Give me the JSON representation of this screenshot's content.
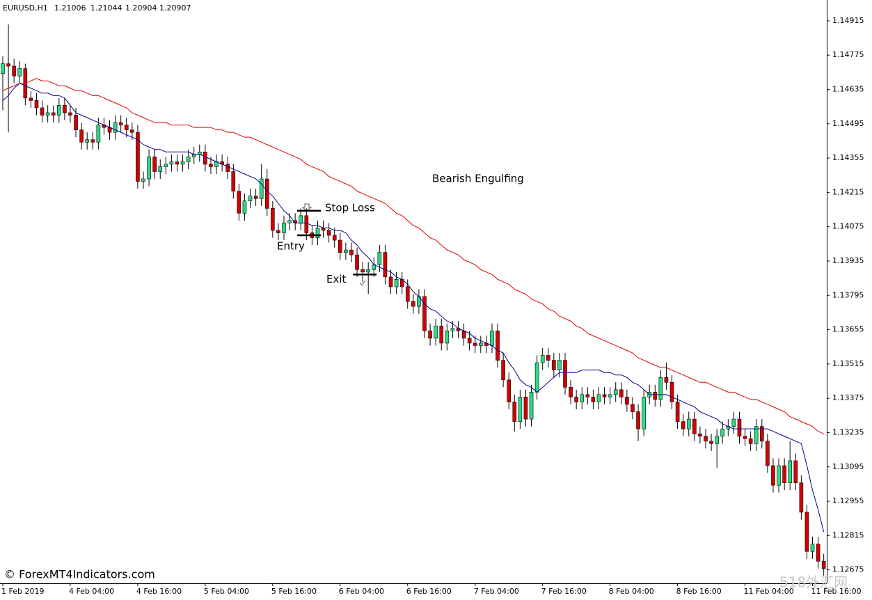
{
  "chart_data": {
    "type": "candlestick",
    "header": {
      "symbol": "EURUSD,H1",
      "open": 1.21006,
      "high": 1.21044,
      "low": 1.20904,
      "close": 1.20907
    },
    "categories": [
      "1 Feb 2019",
      null,
      null,
      null,
      null,
      null,
      null,
      null,
      null,
      null,
      null,
      null,
      "4 Feb 04:00",
      null,
      null,
      null,
      null,
      null,
      null,
      null,
      null,
      null,
      null,
      null,
      "4 Feb 16:00",
      null,
      null,
      null,
      null,
      null,
      null,
      null,
      null,
      null,
      null,
      null,
      "5 Feb 04:00",
      null,
      null,
      null,
      null,
      null,
      null,
      null,
      null,
      null,
      null,
      null,
      "5 Feb 16:00",
      null,
      null,
      null,
      null,
      null,
      null,
      null,
      null,
      null,
      null,
      null,
      "6 Feb 04:00",
      null,
      null,
      null,
      null,
      null,
      null,
      null,
      null,
      null,
      null,
      null,
      "6 Feb 16:00",
      null,
      null,
      null,
      null,
      null,
      null,
      null,
      null,
      null,
      null,
      null,
      "7 Feb 04:00",
      null,
      null,
      null,
      null,
      null,
      null,
      null,
      null,
      null,
      null,
      null,
      "7 Feb 16:00",
      null,
      null,
      null,
      null,
      null,
      null,
      null,
      null,
      null,
      null,
      null,
      "8 Feb 04:00",
      null,
      null,
      null,
      null,
      null,
      null,
      null,
      null,
      null,
      null,
      null,
      "8 Feb 16:00",
      null,
      null,
      null,
      null,
      null,
      null,
      null,
      null,
      null,
      null,
      null,
      "11 Feb 04:00",
      null,
      null,
      null,
      null,
      null,
      null,
      null,
      null,
      null,
      null,
      null,
      "11 Feb 16:00",
      null,
      null
    ],
    "open": [
      1.147,
      1.1474,
      1.1473,
      1.1469,
      1.1472,
      1.146,
      1.1459,
      1.1456,
      1.1453,
      1.1454,
      1.1453,
      1.1457,
      1.1454,
      1.1453,
      1.1447,
      1.1442,
      1.1443,
      1.1442,
      1.1449,
      1.1448,
      1.1446,
      1.145,
      1.1449,
      1.1447,
      1.1446,
      1.1426,
      1.1427,
      1.1436,
      1.143,
      1.1432,
      1.1433,
      1.1434,
      1.1433,
      1.1434,
      1.1436,
      1.1437,
      1.1438,
      1.1433,
      1.1432,
      1.1434,
      1.1433,
      1.143,
      1.1422,
      1.1413,
      1.1418,
      1.142,
      1.1419,
      1.1427,
      1.1415,
      1.1406,
      1.1405,
      1.1409,
      1.141,
      1.1409,
      1.1412,
      1.1405,
      1.1403,
      1.1407,
      1.1406,
      1.1404,
      1.1402,
      1.1397,
      1.1398,
      1.1396,
      1.139,
      1.1389,
      1.139,
      1.1392,
      1.1397,
      1.1387,
      1.1383,
      1.1386,
      1.1383,
      1.1377,
      1.1375,
      1.1379,
      1.1365,
      1.1362,
      1.1367,
      1.136,
      1.1365,
      1.1366,
      1.1365,
      1.1362,
      1.136,
      1.1359,
      1.136,
      1.1359,
      1.1365,
      1.1353,
      1.1345,
      1.1336,
      1.1328,
      1.1338,
      1.1329,
      1.134,
      1.1352,
      1.1355,
      1.1353,
      1.1349,
      1.1353,
      1.1342,
      1.1338,
      1.1336,
      1.1339,
      1.1338,
      1.1336,
      1.1339,
      1.1338,
      1.1339,
      1.1341,
      1.1338,
      1.1335,
      1.1332,
      1.1325,
      1.1338,
      1.134,
      1.1337,
      1.1346,
      1.1344,
      1.1336,
      1.1328,
      1.1325,
      1.1329,
      1.1323,
      1.1322,
      1.132,
      1.1319,
      1.1322,
      1.1325,
      1.1326,
      1.1329,
      1.1322,
      1.1321,
      1.1319,
      1.1326,
      1.132,
      1.131,
      1.1302,
      1.131,
      1.1303,
      1.1312,
      1.1303,
      1.1291,
      1.1275,
      1.1278,
      1.1271
    ],
    "high": [
      1.1477,
      1.149,
      1.1476,
      1.1475,
      1.1474,
      1.1463,
      1.1462,
      1.1459,
      1.1457,
      1.1457,
      1.146,
      1.146,
      1.1457,
      1.1456,
      1.145,
      1.1446,
      1.1446,
      1.1452,
      1.1452,
      1.1451,
      1.1453,
      1.1453,
      1.1452,
      1.145,
      1.1449,
      1.143,
      1.1439,
      1.1439,
      1.1435,
      1.1436,
      1.1437,
      1.1437,
      1.1437,
      1.1439,
      1.144,
      1.1441,
      1.1441,
      1.1436,
      1.1437,
      1.1437,
      1.1436,
      1.1433,
      1.1425,
      1.1421,
      1.1423,
      1.1423,
      1.1433,
      1.1431,
      1.1418,
      1.1409,
      1.1412,
      1.1413,
      1.1413,
      1.1415,
      1.1415,
      1.1408,
      1.141,
      1.141,
      1.1409,
      1.1407,
      1.1405,
      1.1401,
      1.1401,
      1.1399,
      1.1393,
      1.1393,
      1.1395,
      1.14,
      1.14,
      1.139,
      1.1389,
      1.1389,
      1.1386,
      1.138,
      1.1382,
      1.1382,
      1.1368,
      1.137,
      1.137,
      1.1368,
      1.1369,
      1.1369,
      1.1368,
      1.1365,
      1.1363,
      1.1363,
      1.1363,
      1.1368,
      1.1368,
      1.1356,
      1.1348,
      1.1339,
      1.1341,
      1.1341,
      1.1343,
      1.1355,
      1.1358,
      1.1358,
      1.1356,
      1.1356,
      1.1356,
      1.1345,
      1.1341,
      1.1342,
      1.1342,
      1.1341,
      1.1342,
      1.1342,
      1.1342,
      1.1344,
      1.1344,
      1.1341,
      1.1338,
      1.1335,
      1.1341,
      1.1343,
      1.1343,
      1.1349,
      1.1352,
      1.1347,
      1.1339,
      1.1331,
      1.1332,
      1.1332,
      1.1326,
      1.1325,
      1.1323,
      1.1325,
      1.1328,
      1.1329,
      1.1332,
      1.1332,
      1.1325,
      1.1324,
      1.1329,
      1.1329,
      1.1323,
      1.1313,
      1.1313,
      1.1313,
      1.132,
      1.1315,
      1.1306,
      1.1294,
      1.1281,
      1.1281,
      1.1274
    ],
    "low": [
      1.1455,
      1.1446,
      1.1466,
      1.1466,
      1.1457,
      1.1456,
      1.1453,
      1.145,
      1.145,
      1.145,
      1.145,
      1.1451,
      1.145,
      1.1444,
      1.1439,
      1.1439,
      1.1439,
      1.1439,
      1.1445,
      1.1443,
      1.1443,
      1.1446,
      1.1444,
      1.1443,
      1.1423,
      1.1423,
      1.1424,
      1.1427,
      1.1427,
      1.1429,
      1.143,
      1.143,
      1.143,
      1.1431,
      1.1433,
      1.1434,
      1.143,
      1.1429,
      1.1429,
      1.143,
      1.1427,
      1.1419,
      1.141,
      1.141,
      1.1415,
      1.1416,
      1.1416,
      1.1412,
      1.1403,
      1.1402,
      1.1402,
      1.1406,
      1.1406,
      1.1406,
      1.1402,
      1.14,
      1.14,
      1.1403,
      1.1401,
      1.1399,
      1.1394,
      1.1394,
      1.1393,
      1.1387,
      1.1385,
      1.138,
      1.1387,
      1.1389,
      1.1384,
      1.138,
      1.138,
      1.138,
      1.1374,
      1.1372,
      1.1372,
      1.1362,
      1.1359,
      1.1359,
      1.1357,
      1.1357,
      1.1362,
      1.1362,
      1.1359,
      1.1357,
      1.1356,
      1.1356,
      1.1356,
      1.1356,
      1.135,
      1.1342,
      1.1333,
      1.1324,
      1.1325,
      1.1326,
      1.1326,
      1.1337,
      1.1349,
      1.135,
      1.1346,
      1.1346,
      1.1339,
      1.1335,
      1.1333,
      1.1333,
      1.1335,
      1.1333,
      1.1333,
      1.1335,
      1.1335,
      1.1336,
      1.1335,
      1.1332,
      1.1329,
      1.132,
      1.1322,
      1.1335,
      1.1334,
      1.1334,
      1.1341,
      1.1333,
      1.1325,
      1.1322,
      1.1322,
      1.132,
      1.1319,
      1.1317,
      1.1316,
      1.1309,
      1.1319,
      1.1322,
      1.1323,
      1.1319,
      1.1318,
      1.1316,
      1.1316,
      1.1317,
      1.1307,
      1.1299,
      1.1299,
      1.13,
      1.13,
      1.13,
      1.1288,
      1.1272,
      1.1272,
      1.1268,
      1.1265
    ],
    "close": [
      1.1474,
      1.1473,
      1.1469,
      1.1472,
      1.146,
      1.1459,
      1.1456,
      1.1453,
      1.1454,
      1.1453,
      1.1457,
      1.1454,
      1.1453,
      1.1447,
      1.1442,
      1.1443,
      1.1442,
      1.1449,
      1.1448,
      1.1446,
      1.145,
      1.1449,
      1.1447,
      1.1446,
      1.1426,
      1.1427,
      1.1436,
      1.143,
      1.1432,
      1.1433,
      1.1434,
      1.1433,
      1.1434,
      1.1436,
      1.1437,
      1.1438,
      1.1433,
      1.1432,
      1.1434,
      1.1433,
      1.143,
      1.1422,
      1.1413,
      1.1418,
      1.142,
      1.1419,
      1.1427,
      1.1415,
      1.1406,
      1.1405,
      1.1409,
      1.141,
      1.1409,
      1.1412,
      1.1405,
      1.1403,
      1.1407,
      1.1406,
      1.1404,
      1.1402,
      1.1397,
      1.1398,
      1.1396,
      1.139,
      1.1389,
      1.139,
      1.1392,
      1.1397,
      1.1387,
      1.1383,
      1.1386,
      1.1383,
      1.1377,
      1.1375,
      1.1379,
      1.1365,
      1.1362,
      1.1367,
      1.136,
      1.1365,
      1.1366,
      1.1365,
      1.1362,
      1.136,
      1.1359,
      1.136,
      1.1359,
      1.1365,
      1.1353,
      1.1345,
      1.1336,
      1.1328,
      1.1338,
      1.1329,
      1.134,
      1.1352,
      1.1355,
      1.1353,
      1.1349,
      1.1353,
      1.1342,
      1.1338,
      1.1336,
      1.1339,
      1.1338,
      1.1336,
      1.1339,
      1.1338,
      1.1339,
      1.1341,
      1.1338,
      1.1335,
      1.1332,
      1.1325,
      1.1338,
      1.134,
      1.1337,
      1.1346,
      1.1344,
      1.1336,
      1.1328,
      1.1325,
      1.1329,
      1.1323,
      1.1322,
      1.132,
      1.1319,
      1.1322,
      1.1325,
      1.1326,
      1.1329,
      1.1322,
      1.1321,
      1.1319,
      1.1326,
      1.132,
      1.131,
      1.1302,
      1.131,
      1.1303,
      1.1312,
      1.1303,
      1.1291,
      1.1275,
      1.1278,
      1.1271,
      1.1268
    ],
    "up_color": "#2edb86",
    "down_color": "#d40000",
    "ma_lines": [
      {
        "color": "#000090",
        "values": [
          1.1459,
          1.1461,
          1.1464,
          1.1466,
          1.1465,
          1.1464,
          1.1463,
          1.1462,
          1.1462,
          1.1461,
          1.1461,
          1.146,
          1.1457,
          1.1454,
          1.1453,
          1.1452,
          1.1451,
          1.145,
          1.1449,
          1.1448,
          1.1447,
          1.1446,
          1.1445,
          1.1444,
          1.1443,
          1.1441,
          1.144,
          1.1439,
          1.1439,
          1.1438,
          1.1438,
          1.1438,
          1.1438,
          1.1438,
          1.1437,
          1.1437,
          1.1436,
          1.1435,
          1.1434,
          1.1433,
          1.1432,
          1.1431,
          1.143,
          1.1429,
          1.1428,
          1.1427,
          1.1425,
          1.1422,
          1.142,
          1.1417,
          1.1414,
          1.1412,
          1.1409,
          1.1409,
          1.1409,
          1.1408,
          1.1408,
          1.1407,
          1.1407,
          1.1406,
          1.1406,
          1.1405,
          1.1402,
          1.14,
          1.1397,
          1.1395,
          1.1392,
          1.1391,
          1.139,
          1.1389,
          1.1387,
          1.1386,
          1.1384,
          1.1381,
          1.1379,
          1.1376,
          1.1374,
          1.1373,
          1.1371,
          1.1369,
          1.1368,
          1.1366,
          1.1365,
          1.1364,
          1.1362,
          1.1361,
          1.136,
          1.1359,
          1.1357,
          1.1356,
          1.1352,
          1.1349,
          1.1345,
          1.1343,
          1.1342,
          1.134,
          1.1342,
          1.1344,
          1.1346,
          1.1348,
          1.1348,
          1.1348,
          1.1348,
          1.1349,
          1.1349,
          1.1349,
          1.1349,
          1.1348,
          1.1348,
          1.1347,
          1.1347,
          1.1346,
          1.1344,
          1.1343,
          1.1341,
          1.1339,
          1.1339,
          1.1339,
          1.1339,
          1.1338,
          1.1337,
          1.1336,
          1.1335,
          1.1334,
          1.1332,
          1.1331,
          1.133,
          1.1329,
          1.1327,
          1.1326,
          1.1325,
          1.1325,
          1.1325,
          1.1325,
          1.1325,
          1.1325,
          1.1325,
          1.1324,
          1.1323,
          1.1322,
          1.1321,
          1.132,
          1.1319,
          1.131,
          1.13,
          1.1292,
          1.1283
        ]
      },
      {
        "color": "#e00000",
        "values": [
          1.1463,
          1.1464,
          1.1465,
          1.1466,
          1.1466,
          1.1467,
          1.1468,
          1.1467,
          1.1467,
          1.1466,
          1.1465,
          1.1465,
          1.1464,
          1.1463,
          1.1463,
          1.1462,
          1.1461,
          1.1461,
          1.146,
          1.1459,
          1.1458,
          1.1457,
          1.1456,
          1.1454,
          1.1453,
          1.1452,
          1.1451,
          1.145,
          1.145,
          1.145,
          1.1449,
          1.1449,
          1.1449,
          1.1449,
          1.1448,
          1.1448,
          1.1448,
          1.1448,
          1.1447,
          1.1447,
          1.1446,
          1.1446,
          1.1445,
          1.1444,
          1.1444,
          1.1443,
          1.1442,
          1.1441,
          1.144,
          1.1439,
          1.1438,
          1.1437,
          1.1436,
          1.1435,
          1.1433,
          1.1432,
          1.1431,
          1.143,
          1.1428,
          1.1427,
          1.1426,
          1.1425,
          1.1424,
          1.1422,
          1.1421,
          1.142,
          1.1419,
          1.1418,
          1.1417,
          1.1415,
          1.1413,
          1.1412,
          1.141,
          1.1408,
          1.1407,
          1.1405,
          1.1403,
          1.1402,
          1.14,
          1.1398,
          1.1397,
          1.1396,
          1.1394,
          1.1393,
          1.1392,
          1.139,
          1.1389,
          1.1388,
          1.1386,
          1.1385,
          1.1384,
          1.1382,
          1.1381,
          1.138,
          1.1378,
          1.1377,
          1.1376,
          1.1374,
          1.1373,
          1.1371,
          1.137,
          1.1369,
          1.1367,
          1.1366,
          1.1364,
          1.1363,
          1.1362,
          1.1361,
          1.136,
          1.1359,
          1.1358,
          1.1357,
          1.1356,
          1.1354,
          1.1353,
          1.1352,
          1.1351,
          1.135,
          1.135,
          1.1349,
          1.1348,
          1.1347,
          1.1346,
          1.1345,
          1.1344,
          1.1344,
          1.1343,
          1.1342,
          1.1341,
          1.134,
          1.134,
          1.1339,
          1.1338,
          1.1337,
          1.1337,
          1.1336,
          1.1335,
          1.1334,
          1.1333,
          1.1332,
          1.133,
          1.1329,
          1.1328,
          1.1327,
          1.1326,
          1.1324,
          1.1323
        ]
      }
    ],
    "ylim": [
      1.1262,
      1.15
    ],
    "yticks": [
      1.14915,
      1.14775,
      1.14635,
      1.14495,
      1.14355,
      1.14215,
      1.14075,
      1.13935,
      1.13795,
      1.13655,
      1.13515,
      1.13375,
      1.13235,
      1.13095,
      1.12955,
      1.12815,
      1.12675
    ],
    "grid": false,
    "annotations": [
      {
        "text": "Bearish Engulfing"
      },
      {
        "text": "Stop Loss",
        "value": 1.1414
      },
      {
        "text": "Entry",
        "value": 1.1404
      },
      {
        "text": "Exit",
        "value": 1.1388
      }
    ],
    "watermark": "© ForexMT4Indicators.com",
    "site_mark": "518外汇网"
  }
}
